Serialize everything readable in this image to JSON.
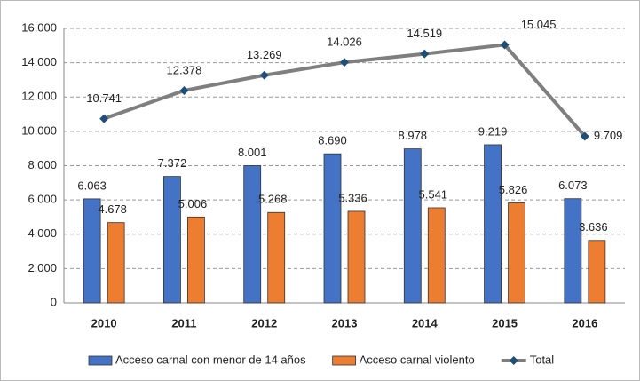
{
  "chart_data": {
    "type": "bar",
    "categories": [
      "2010",
      "2011",
      "2012",
      "2013",
      "2014",
      "2015",
      "2016"
    ],
    "series": [
      {
        "name": "Acceso carnal con menor de 14 años",
        "color": "#4472c4",
        "values": [
          6063,
          7372,
          8001,
          8690,
          8978,
          9219,
          6073
        ],
        "value_labels": [
          "6.063",
          "7.372",
          "8.001",
          "8.690",
          "8.978",
          "9.219",
          "6.073"
        ]
      },
      {
        "name": "Acceso carnal violento",
        "color": "#ed7d31",
        "values": [
          4678,
          5006,
          5268,
          5336,
          5541,
          5826,
          3636
        ],
        "value_labels": [
          "4.678",
          "5.006",
          "5.268",
          "5.336",
          "5.541",
          "5.826",
          "3.636"
        ]
      },
      {
        "name": "Total",
        "color": "#7f7f7f",
        "type": "line",
        "marker_color": "#1f4e79",
        "values": [
          10741,
          12378,
          13269,
          14026,
          14519,
          15045,
          9709
        ],
        "value_labels": [
          "10.741",
          "12.378",
          "13.269",
          "14.026",
          "14.519",
          "15.045",
          "9.709"
        ]
      }
    ],
    "ylim": [
      0,
      16000
    ],
    "yticks": [
      0,
      {
        "value": 2000,
        "label": "2.000"
      },
      {
        "value": 4000,
        "label": "4.000"
      },
      {
        "value": 6000,
        "label": "6.000"
      },
      {
        "value": 8000,
        "label": "8.000"
      },
      {
        "value": 10000,
        "label": "10.000"
      },
      {
        "value": 12000,
        "label": "12.000"
      },
      {
        "value": 14000,
        "label": "14.000"
      },
      {
        "value": 16000,
        "label": "16.000"
      }
    ],
    "grid": true,
    "legend": "bottom"
  }
}
